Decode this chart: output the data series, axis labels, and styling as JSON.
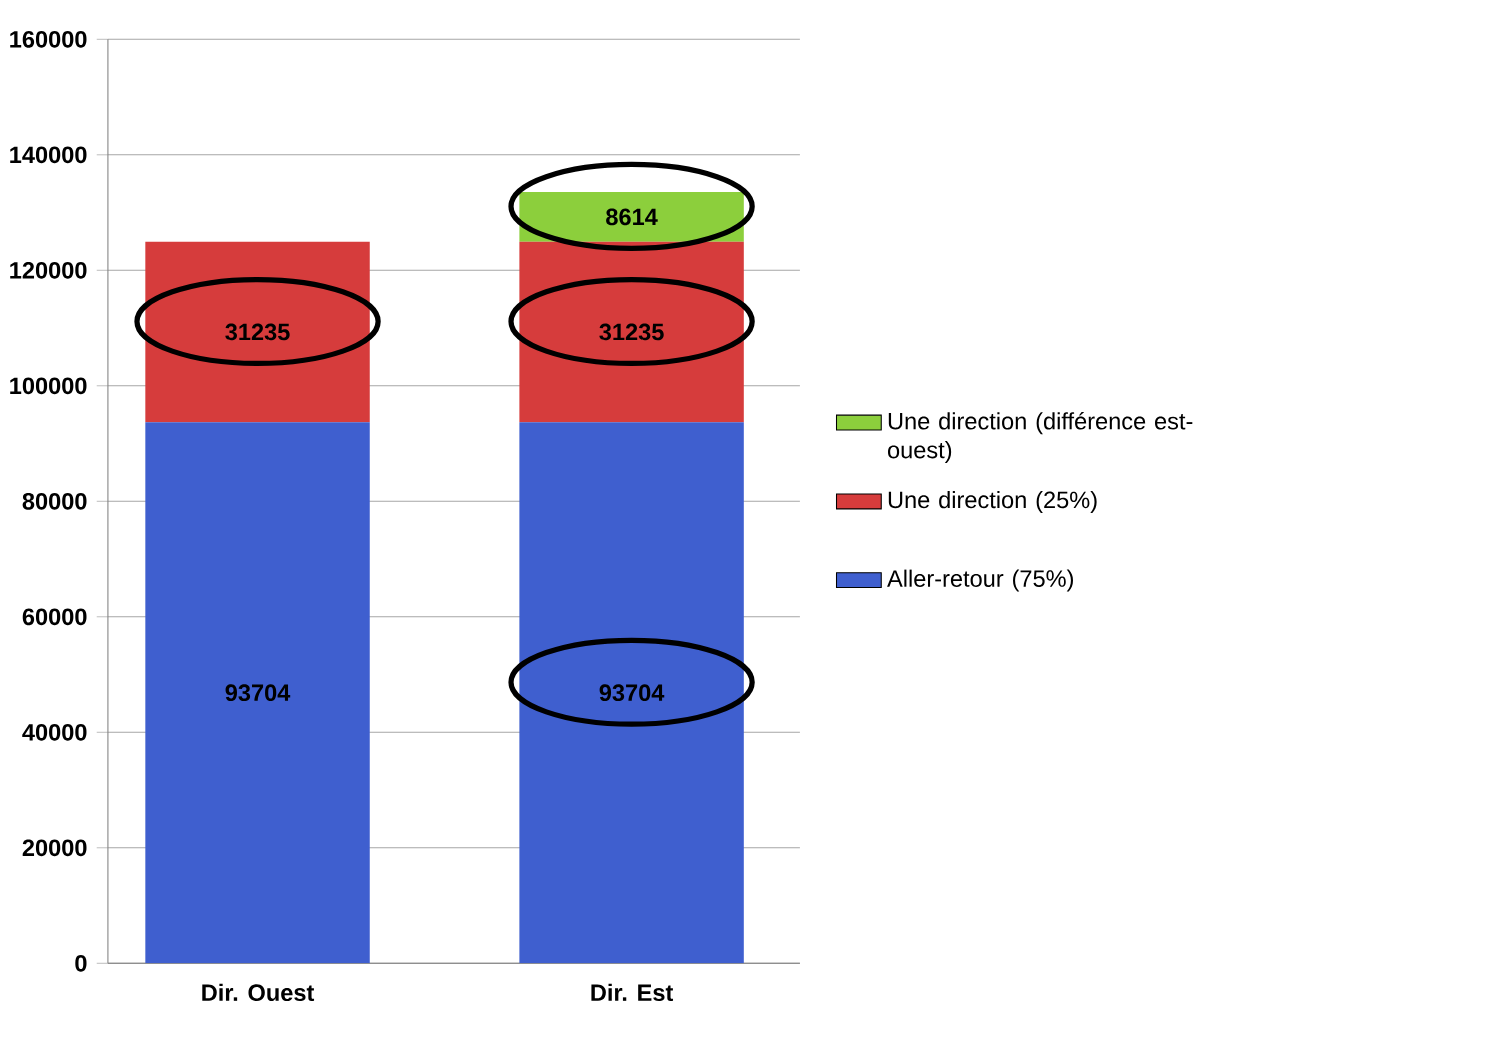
{
  "chart_data": {
    "type": "bar",
    "stacked": true,
    "categories": [
      "Dir. Ouest",
      "Dir. Est"
    ],
    "series": [
      {
        "name": "Aller-retour (75%)",
        "color": "#3f5fcf",
        "values": [
          93704,
          93704
        ],
        "value_labels": [
          "93704",
          "93704"
        ]
      },
      {
        "name": "Une direction (25%)",
        "color": "#d63c3c",
        "values": [
          31235,
          31235
        ],
        "value_labels": [
          "31235",
          "31235"
        ]
      },
      {
        "name": "Une direction (différence est-ouest)",
        "color": "#8ccf3c",
        "values": [
          null,
          8614
        ],
        "value_labels": [
          null,
          "8614"
        ]
      }
    ],
    "ylim": [
      0,
      160000
    ],
    "yticks": [
      0,
      20000,
      40000,
      60000,
      80000,
      100000,
      120000,
      140000,
      160000
    ],
    "grid": "y",
    "legend": "right"
  }
}
